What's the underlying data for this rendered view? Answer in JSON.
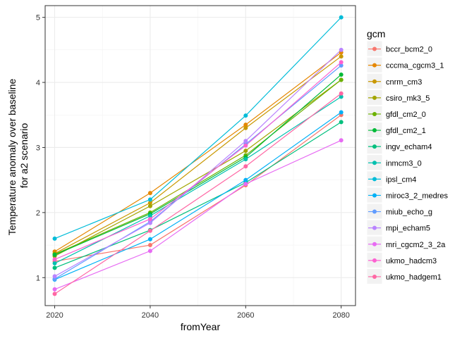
{
  "chart_data": {
    "type": "line",
    "title": "",
    "xlabel": "fromYear",
    "ylabel": [
      "Temperature anomaly over baseline",
      "for a2 scenario"
    ],
    "x": [
      2020,
      2040,
      2060,
      2080
    ],
    "x_ticks": [
      "2020",
      "2040",
      "2060",
      "2080"
    ],
    "xlim": [
      2018,
      2083
    ],
    "y_ticks": [
      "1",
      "2",
      "3",
      "4",
      "5"
    ],
    "ylim": [
      0.57,
      5.18
    ],
    "grid": true,
    "legend": {
      "title": "gcm",
      "position": "right"
    },
    "series": [
      {
        "name": "bccr_bcm2_0",
        "color": "#F8766D",
        "values": [
          1.25,
          1.5,
          2.42,
          3.5
        ]
      },
      {
        "name": "cccma_cgcm3_1",
        "color": "#E58700",
        "values": [
          1.4,
          2.3,
          3.35,
          4.46
        ]
      },
      {
        "name": "cnrm_cm3",
        "color": "#C99800",
        "values": [
          1.37,
          2.15,
          3.3,
          4.4
        ]
      },
      {
        "name": "csiro_mk3_5",
        "color": "#A3A500",
        "values": [
          1.33,
          2.1,
          2.95,
          4.04
        ]
      },
      {
        "name": "gfdl_cm2_0",
        "color": "#6BB100",
        "values": [
          1.36,
          2.0,
          2.88,
          4.04
        ]
      },
      {
        "name": "gfdl_cm2_1",
        "color": "#00BA38",
        "values": [
          1.35,
          1.98,
          2.85,
          4.12
        ]
      },
      {
        "name": "ingv_echam4",
        "color": "#00BF7D",
        "values": [
          1.15,
          1.73,
          2.46,
          3.39
        ]
      },
      {
        "name": "inmcm3_0",
        "color": "#00C0AF",
        "values": [
          1.22,
          1.95,
          2.82,
          3.78
        ]
      },
      {
        "name": "ipsl_cm4",
        "color": "#00BCD8",
        "values": [
          1.6,
          2.2,
          3.49,
          5.0
        ]
      },
      {
        "name": "miroc3_2_medres",
        "color": "#00B0F6",
        "values": [
          0.97,
          1.59,
          2.5,
          3.54
        ]
      },
      {
        "name": "miub_echo_g",
        "color": "#619CFF",
        "values": [
          0.98,
          1.86,
          3.05,
          4.26
        ]
      },
      {
        "name": "mpi_echam5",
        "color": "#B983FF",
        "values": [
          1.02,
          1.84,
          3.1,
          4.5
        ]
      },
      {
        "name": "mri_cgcm2_3_2a",
        "color": "#E76BF3",
        "values": [
          0.82,
          1.41,
          2.44,
          3.11
        ]
      },
      {
        "name": "ukmo_hadcm3",
        "color": "#FD61D1",
        "values": [
          1.28,
          1.9,
          3.03,
          4.31
        ]
      },
      {
        "name": "ukmo_hadgem1",
        "color": "#FF67A4",
        "values": [
          0.75,
          1.72,
          2.71,
          3.83
        ]
      }
    ]
  }
}
